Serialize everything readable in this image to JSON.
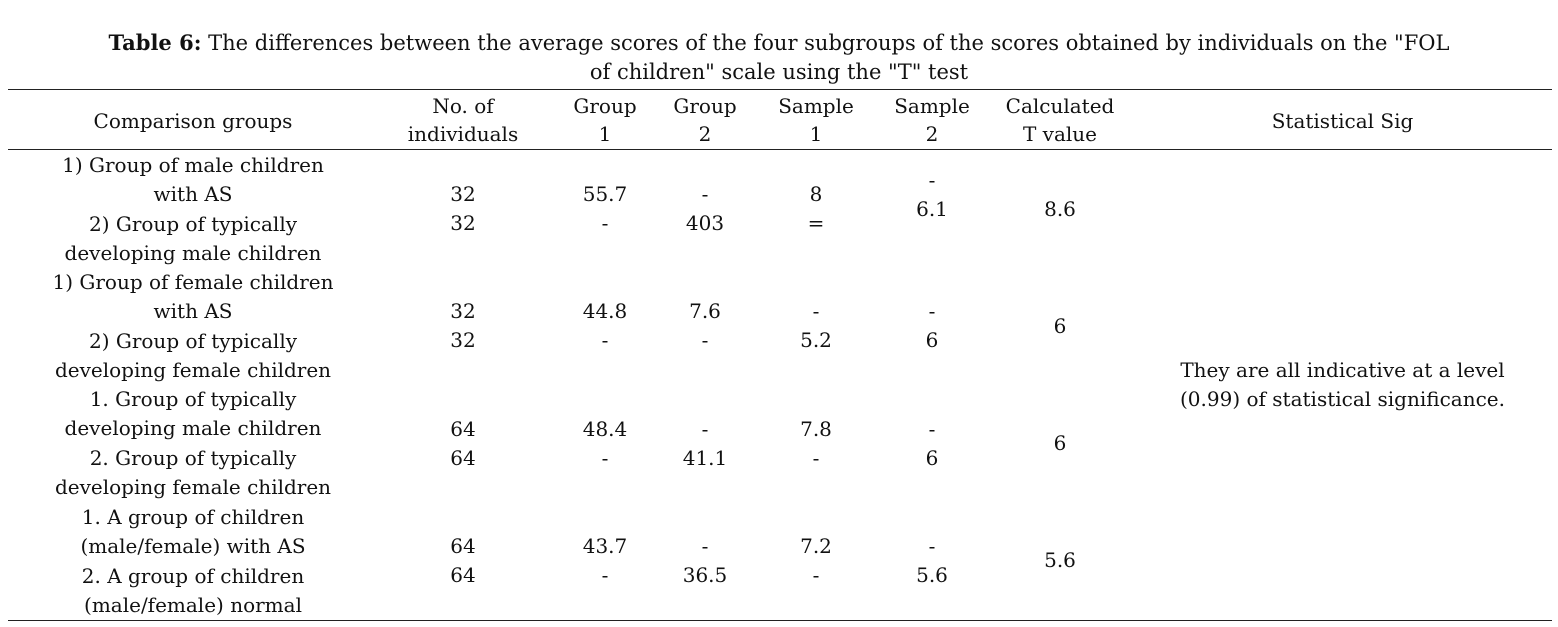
{
  "caption": {
    "label": "Table 6:",
    "text_line1": " The differences between the average scores of the four subgroups of the scores obtained by individuals on the \"FOL",
    "text_line2": "of children\" scale using the \"T\" test"
  },
  "headers": {
    "comparison": "Comparison groups",
    "no_individuals": [
      "No. of",
      "individuals"
    ],
    "group1": [
      "Group",
      "1"
    ],
    "group2": [
      "Group",
      "2"
    ],
    "sample1": [
      "Sample",
      "1"
    ],
    "sample2": [
      "Sample",
      "2"
    ],
    "t_value": [
      "Calculated",
      "T value"
    ],
    "sig": "Statistical Sig"
  },
  "rows": [
    {
      "comparison": [
        "1) Group of male children",
        "with AS",
        "2) Group of typically",
        "developing male children"
      ],
      "n": [
        "32",
        "32"
      ],
      "group1": [
        "55.7",
        "-"
      ],
      "group2": [
        "-",
        "403"
      ],
      "sample1": [
        "8",
        "="
      ],
      "sample2": [
        "-",
        "6.1"
      ],
      "t": "8.6"
    },
    {
      "comparison": [
        "1) Group of female children",
        "with AS",
        "2) Group of typically",
        "developing female children"
      ],
      "n": [
        "32",
        "32"
      ],
      "group1": [
        "44.8",
        "-"
      ],
      "group2": [
        "7.6",
        "-"
      ],
      "sample1": [
        "-",
        "5.2"
      ],
      "sample2": [
        "-",
        "6"
      ],
      "t": "6"
    },
    {
      "comparison": [
        "1. Group of typically",
        "developing male children",
        "2. Group of typically",
        "developing female children"
      ],
      "n": [
        "64",
        "64"
      ],
      "group1": [
        "48.4",
        "-"
      ],
      "group2": [
        "-",
        "41.1"
      ],
      "sample1": [
        "7.8",
        "-"
      ],
      "sample2": [
        "-",
        "6"
      ],
      "t": "6"
    },
    {
      "comparison": [
        "1. A group of children",
        "(male/female) with AS",
        "2. A group of children",
        "(male/female) normal"
      ],
      "n": [
        "64",
        "64"
      ],
      "group1": [
        "43.7",
        "-"
      ],
      "group2": [
        "-",
        "36.5"
      ],
      "sample1": [
        "7.2",
        "-"
      ],
      "sample2": [
        "-",
        "5.6"
      ],
      "t": "5.6"
    }
  ],
  "significance": [
    "They are all indicative at a level",
    "(0.99) of statistical significance."
  ]
}
